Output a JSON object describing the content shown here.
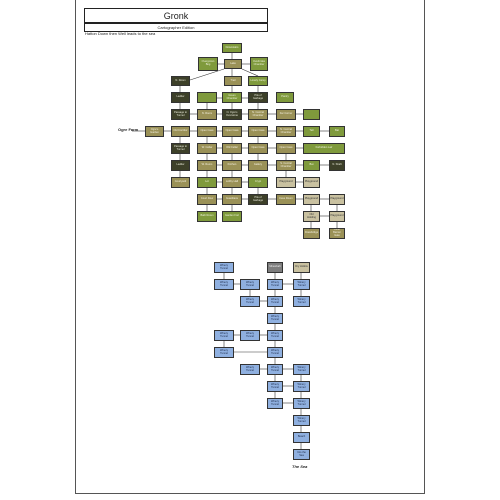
{
  "header": {
    "title": "Gronk",
    "subtitle": "Cartographer Edition",
    "note": "Hatton Down then Well leads to the sea"
  },
  "labels": {
    "ogre_farm": "Ogre Farm",
    "the_sea": "The Sea"
  },
  "colors": {
    "green": "#7f9a3c",
    "olive": "#9a9157",
    "dark": "#3d4029",
    "tan": "#c9c1a0",
    "blue": "#8fb0e0",
    "grey": "#7d7d7d"
  },
  "nodes": [
    {
      "name": "upper-room-1",
      "label": "Downstairs",
      "color": "green"
    },
    {
      "name": "upper-room-2",
      "label": "Overgrown Bog",
      "color": "green"
    },
    {
      "name": "upper-room-3",
      "label": "Lake",
      "color": "olive"
    },
    {
      "name": "upper-room-4",
      "label": "Overbroke Chamber",
      "color": "green"
    },
    {
      "name": "upper-room-5",
      "label": "N. Room",
      "color": "dark"
    },
    {
      "name": "upper-room-6",
      "label": "Trail",
      "color": "olive"
    },
    {
      "name": "upper-room-7",
      "label": "Lonely Camp",
      "color": "green"
    },
    {
      "name": "upper-room-8",
      "label": "Ladder",
      "color": "dark"
    },
    {
      "name": "upper-room-9",
      "label": "",
      "color": "green"
    },
    {
      "name": "upper-room-10",
      "label": "Green Chamber",
      "color": "green"
    },
    {
      "name": "upper-room-11",
      "label": "Pits of Garbage",
      "color": "dark"
    },
    {
      "name": "upper-room-12",
      "label": "Pantry",
      "color": "green"
    },
    {
      "name": "upper-room-13",
      "label": "Passage to Tunnel",
      "color": "dark"
    },
    {
      "name": "upper-room-14",
      "label": "N. Room",
      "color": "olive"
    },
    {
      "name": "upper-room-15",
      "label": "N. Ogre's Overstone",
      "color": "dark"
    },
    {
      "name": "upper-room-16",
      "label": "N. Central Chamber",
      "color": "olive"
    },
    {
      "name": "upper-room-17",
      "label": "Far Corner",
      "color": "olive"
    },
    {
      "name": "upper-room-18",
      "label": "",
      "color": "green"
    },
    {
      "name": "upper-room-19",
      "label": "Ogre's Garden",
      "color": "olive"
    },
    {
      "name": "upper-room-20",
      "label": "Old Corridor",
      "color": "olive"
    },
    {
      "name": "upper-room-21",
      "label": "Open Cave",
      "color": "olive"
    },
    {
      "name": "upper-room-22",
      "label": "Open Cave",
      "color": "olive"
    },
    {
      "name": "upper-room-23",
      "label": "Open Cave",
      "color": "olive"
    },
    {
      "name": "upper-room-24",
      "label": "N. Central Chamber",
      "color": "olive"
    },
    {
      "name": "upper-room-25",
      "label": "Tall",
      "color": "green"
    },
    {
      "name": "upper-room-26",
      "label": "Bat",
      "color": "green"
    },
    {
      "name": "upper-room-27",
      "label": "Passage to Tunnel",
      "color": "dark"
    },
    {
      "name": "upper-room-28",
      "label": "W. Cellar",
      "color": "olive"
    },
    {
      "name": "upper-room-29",
      "label": "Old Cellar",
      "color": "olive"
    },
    {
      "name": "upper-room-30",
      "label": "Open Cave",
      "color": "olive"
    },
    {
      "name": "upper-room-31",
      "label": "Open Cave",
      "color": "olive"
    },
    {
      "name": "upper-room-32",
      "label": "Forbidden Lair",
      "color": "green"
    },
    {
      "name": "upper-room-33",
      "label": "Ladder",
      "color": "dark"
    },
    {
      "name": "upper-room-34",
      "label": "W. Room",
      "color": "olive"
    },
    {
      "name": "upper-room-35",
      "label": "Kitchen",
      "color": "olive"
    },
    {
      "name": "upper-room-36",
      "label": "Gallery",
      "color": "olive"
    },
    {
      "name": "upper-room-37",
      "label": "S. Central Chamber",
      "color": "olive"
    },
    {
      "name": "upper-room-38",
      "label": "Bat",
      "color": "green"
    },
    {
      "name": "upper-room-39",
      "label": "N. Shaft",
      "color": "dark"
    },
    {
      "name": "upper-room-40",
      "label": "Courtyard",
      "color": "olive"
    },
    {
      "name": "upper-room-41",
      "label": "Lot",
      "color": "green"
    },
    {
      "name": "upper-room-42",
      "label": "Lobby Hall",
      "color": "olive"
    },
    {
      "name": "upper-room-43",
      "label": "Crypt",
      "color": "green"
    },
    {
      "name": "upper-room-44",
      "label": "Playground",
      "color": "tan"
    },
    {
      "name": "upper-room-45",
      "label": "Playground",
      "color": "tan"
    },
    {
      "name": "upper-room-46",
      "label": "Court Row",
      "color": "olive"
    },
    {
      "name": "upper-room-47",
      "label": "Guardians",
      "color": "olive"
    },
    {
      "name": "upper-room-48",
      "label": "Pits of Garbage",
      "color": "dark"
    },
    {
      "name": "upper-room-49",
      "label": "Cave Room",
      "color": "olive"
    },
    {
      "name": "upper-room-50",
      "label": "Playground",
      "color": "tan"
    },
    {
      "name": "upper-room-51",
      "label": "Playground",
      "color": "tan"
    },
    {
      "name": "upper-room-52",
      "label": "Bath Room",
      "color": "green"
    },
    {
      "name": "upper-room-53",
      "label": "Garden Fort",
      "color": "green"
    },
    {
      "name": "upper-room-54",
      "label": "Old Holding",
      "color": "tan"
    },
    {
      "name": "upper-room-55",
      "label": "Playground",
      "color": "tan"
    },
    {
      "name": "upper-room-56",
      "label": "Drawbridge",
      "color": "olive"
    },
    {
      "name": "upper-room-57",
      "label": "Outer Barrier Gate",
      "color": "olive"
    },
    {
      "name": "lower-tunnel-1",
      "label": "Winery Tunnel",
      "color": "blue"
    },
    {
      "name": "lower-tunnel-2",
      "label": "Mineshaft",
      "color": "grey"
    },
    {
      "name": "lower-tunnel-3",
      "label": "Dry Hollow",
      "color": "tan"
    },
    {
      "name": "lower-tunnel-4",
      "label": "Winery Tunnel",
      "color": "blue"
    },
    {
      "name": "lower-tunnel-5",
      "label": "Winery Tunnel",
      "color": "blue"
    },
    {
      "name": "lower-tunnel-6",
      "label": "Winery Tunnel",
      "color": "blue"
    },
    {
      "name": "lower-tunnel-7",
      "label": "Winery Tunnel",
      "color": "blue"
    },
    {
      "name": "lower-tunnel-8",
      "label": "Winery Tunnel",
      "color": "blue"
    },
    {
      "name": "lower-tunnel-9",
      "label": "Winery Tunnel",
      "color": "blue"
    },
    {
      "name": "lower-tunnel-10",
      "label": "Winery Tunnel",
      "color": "blue"
    },
    {
      "name": "lower-tunnel-11",
      "label": "Winery Tunnel",
      "color": "blue"
    },
    {
      "name": "lower-tunnel-12",
      "label": "Winery Tunnel",
      "color": "blue"
    },
    {
      "name": "lower-tunnel-13",
      "label": "Winery Tunnel",
      "color": "blue"
    },
    {
      "name": "lower-tunnel-14",
      "label": "Winery Tunnel",
      "color": "blue"
    },
    {
      "name": "lower-tunnel-15",
      "label": "Winery Tunnel",
      "color": "blue"
    },
    {
      "name": "lower-tunnel-16",
      "label": "Winery Tunnel",
      "color": "blue"
    },
    {
      "name": "lower-tunnel-17",
      "label": "Winery Tunnel",
      "color": "blue"
    },
    {
      "name": "lower-tunnel-18",
      "label": "Winery Tunnel",
      "color": "blue"
    },
    {
      "name": "lower-tunnel-19",
      "label": "Winery Tunnel",
      "color": "blue"
    },
    {
      "name": "lower-tunnel-20",
      "label": "Winery Tunnel",
      "color": "blue"
    },
    {
      "name": "lower-tunnel-21",
      "label": "Winery Tunnel",
      "color": "blue"
    },
    {
      "name": "lower-tunnel-22",
      "label": "Winery Tunnel",
      "color": "blue"
    },
    {
      "name": "lower-tunnel-23",
      "label": "Winery Tunnel",
      "color": "blue"
    },
    {
      "name": "lower-tunnel-24",
      "label": "Winery Tunnel",
      "color": "blue"
    },
    {
      "name": "lower-tunnel-25",
      "label": "Beach",
      "color": "blue"
    },
    {
      "name": "lower-tunnel-26",
      "label": "Into the Sea",
      "color": "blue"
    }
  ]
}
